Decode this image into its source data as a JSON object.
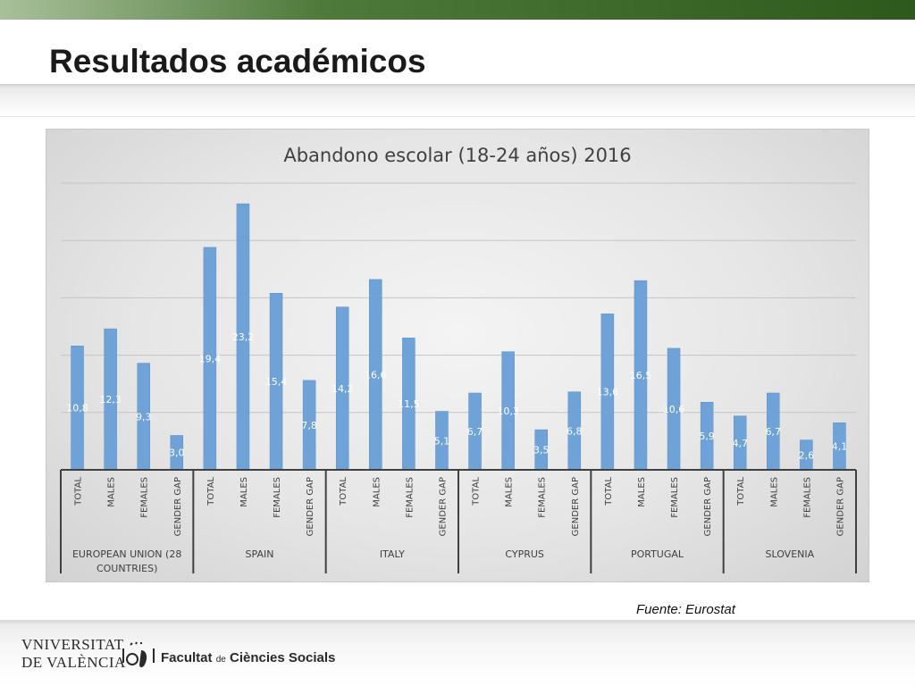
{
  "slide": {
    "title": "Resultados académicos",
    "source": "Fuente: Eurostat"
  },
  "footer": {
    "university_line1": "VNIVERSITAT",
    "university_line2": "DE VALÈNCIA",
    "faculty_text": "Facultat",
    "faculty_de": "de",
    "faculty_rest": "Ciències Socials",
    "emblem_icon": "university-emblem-icon"
  },
  "colors": {
    "bar": "#6fa3d8",
    "bar_edge": "#5b8fc7",
    "label": "#ffffff",
    "axis": "#404040",
    "title": "#404040",
    "header_green": "#2d5a1c"
  },
  "chart_data": {
    "type": "bar",
    "title": "Abandono escolar (18-24 años) 2016",
    "xlabel": "",
    "ylabel": "",
    "ylim": [
      0,
      25
    ],
    "grid": true,
    "legend": "none",
    "groups": [
      {
        "name": "EUROPEAN UNION (28 COUNTRIES)",
        "name_lines": [
          "EUROPEAN UNION (28",
          "COUNTRIES)"
        ],
        "categories": [
          "TOTAL",
          "MALES",
          "FEMALES",
          "GENDER GAP"
        ],
        "values": [
          10.8,
          12.3,
          9.3,
          3.0
        ],
        "labels": [
          "10,8",
          "12,3",
          "9,3",
          "3,0"
        ]
      },
      {
        "name": "SPAIN",
        "name_lines": [
          "SPAIN"
        ],
        "categories": [
          "TOTAL",
          "MALES",
          "FEMALES",
          "GENDER GAP"
        ],
        "values": [
          19.4,
          23.2,
          15.4,
          7.8
        ],
        "labels": [
          "19,4",
          "23,2",
          "15,4",
          "7,8"
        ]
      },
      {
        "name": "ITALY",
        "name_lines": [
          "ITALY"
        ],
        "categories": [
          "TOTAL",
          "MALES",
          "FEMALES",
          "GENDER GAP"
        ],
        "values": [
          14.2,
          16.6,
          11.5,
          5.1
        ],
        "labels": [
          "14,2",
          "16,6",
          "11,5",
          "5,1"
        ]
      },
      {
        "name": "CYPRUS",
        "name_lines": [
          "CYPRUS"
        ],
        "categories": [
          "TOTAL",
          "MALES",
          "FEMALES",
          "GENDER GAP"
        ],
        "values": [
          6.7,
          10.3,
          3.5,
          6.8
        ],
        "labels": [
          "6,7",
          "10,3",
          "3,5",
          "6,8"
        ]
      },
      {
        "name": "PORTUGAL",
        "name_lines": [
          "PORTUGAL"
        ],
        "categories": [
          "TOTAL",
          "MALES",
          "FEMALES",
          "GENDER GAP"
        ],
        "values": [
          13.6,
          16.5,
          10.6,
          5.9
        ],
        "labels": [
          "13,6",
          "16,5",
          "10,6",
          "5,9"
        ]
      },
      {
        "name": "SLOVENIA",
        "name_lines": [
          "SLOVENIA"
        ],
        "categories": [
          "TOTAL",
          "MALES",
          "FEMALES",
          "GENDER GAP"
        ],
        "values": [
          4.7,
          6.7,
          2.6,
          4.1
        ],
        "labels": [
          "4,7",
          "6,7",
          "2,6",
          "4,1"
        ]
      }
    ]
  }
}
